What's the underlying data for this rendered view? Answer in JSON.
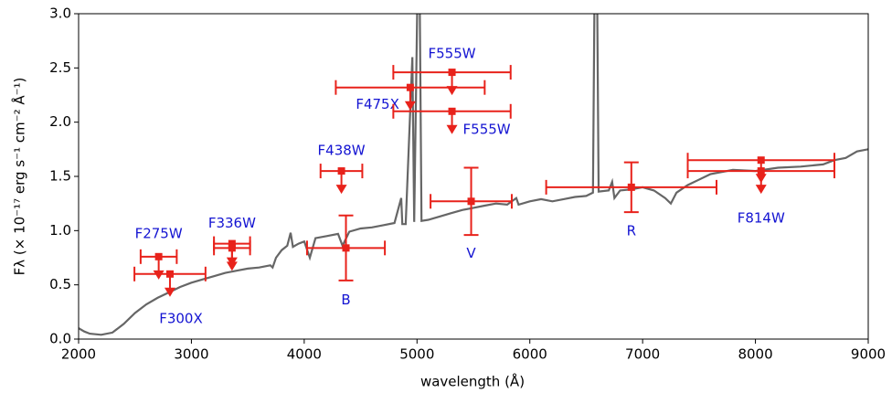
{
  "chart_data": {
    "type": "line",
    "xlabel": "wavelength (Å)",
    "ylabel": "Fλ (× 10⁻¹⁷ erg s⁻¹ cm⁻² Å⁻¹)",
    "xlim": [
      2000,
      9000
    ],
    "ylim": [
      0.0,
      3.0
    ],
    "xticks": [
      2000,
      3000,
      4000,
      5000,
      6000,
      7000,
      8000,
      9000
    ],
    "yticks": [
      {
        "value": 0.0,
        "label": "0.0"
      },
      0.5,
      {
        "value": 1.0,
        "label": "1.0"
      },
      1.5,
      {
        "value": 2.0,
        "label": "2.0"
      },
      2.5,
      {
        "value": 3.0,
        "label": "3.0"
      }
    ],
    "color": "#666666",
    "x": [
      2000,
      2050,
      2100,
      2200,
      2300,
      2400,
      2500,
      2600,
      2700,
      2800,
      2900,
      3000,
      3100,
      3200,
      3300,
      3400,
      3500,
      3600,
      3700,
      3720,
      3750,
      3800,
      3850,
      3880,
      3900,
      3950,
      4000,
      4050,
      4100,
      4200,
      4300,
      4340,
      4400,
      4500,
      4600,
      4700,
      4800,
      4860,
      4870,
      4900,
      4959,
      4975,
      5007,
      5022,
      5040,
      5100,
      5200,
      5300,
      5400,
      5500,
      5600,
      5700,
      5800,
      5880,
      5900,
      6000,
      6100,
      6200,
      6300,
      6400,
      6500,
      6560,
      6575,
      6595,
      6610,
      6700,
      6730,
      6750,
      6800,
      6900,
      7000,
      7100,
      7200,
      7250,
      7300,
      7400,
      7600,
      7800,
      8000,
      8200,
      8400,
      8600,
      8700,
      8800,
      8900,
      9000
    ],
    "values": [
      0.1,
      0.07,
      0.05,
      0.04,
      0.06,
      0.14,
      0.24,
      0.32,
      0.38,
      0.43,
      0.48,
      0.52,
      0.55,
      0.58,
      0.61,
      0.63,
      0.65,
      0.66,
      0.68,
      0.66,
      0.75,
      0.82,
      0.86,
      0.98,
      0.85,
      0.88,
      0.9,
      0.75,
      0.93,
      0.95,
      0.97,
      0.86,
      0.99,
      1.02,
      1.03,
      1.05,
      1.07,
      1.3,
      1.06,
      1.06,
      2.6,
      1.08,
      3.4,
      3.4,
      1.09,
      1.1,
      1.13,
      1.16,
      1.19,
      1.21,
      1.23,
      1.25,
      1.24,
      1.3,
      1.24,
      1.27,
      1.29,
      1.27,
      1.29,
      1.31,
      1.32,
      1.35,
      3.4,
      3.4,
      1.36,
      1.37,
      1.45,
      1.3,
      1.37,
      1.38,
      1.4,
      1.37,
      1.3,
      1.25,
      1.35,
      1.42,
      1.52,
      1.56,
      1.55,
      1.58,
      1.59,
      1.61,
      1.65,
      1.67,
      1.73,
      1.75
    ],
    "point_color": "#e8221b",
    "label_color": "#1414d2",
    "points": [
      {
        "name": "F275W",
        "x": 2710,
        "xerr": 160,
        "y": 0.76,
        "upper_limit": true
      },
      {
        "name": "F300X",
        "x": 2810,
        "xerr": 315,
        "y": 0.6,
        "upper_limit": true
      },
      {
        "name": "F336W",
        "x": 3360,
        "xerr": 160,
        "y": 0.88,
        "upper_limit": true
      },
      {
        "x": 3360,
        "xerr": 160,
        "y": 0.84,
        "upper_limit": true
      },
      {
        "name": "F438W",
        "x": 4330,
        "xerr": 185,
        "y": 1.55,
        "upper_limit": true
      },
      {
        "name": "B",
        "x": 4370,
        "xerr": 345,
        "y": 0.84,
        "yerr": 0.3
      },
      {
        "name": "F475X",
        "x": 4940,
        "xerr": 660,
        "y": 2.32,
        "upper_limit": true
      },
      {
        "name": "F555W",
        "x": 5310,
        "xerr": 520,
        "y": 2.46,
        "upper_limit": true
      },
      {
        "name": "F555W",
        "x": 5310,
        "xerr": 520,
        "y": 2.1,
        "upper_limit": true
      },
      {
        "name": "V",
        "x": 5480,
        "xerr": 360,
        "y": 1.27,
        "yerr": 0.31
      },
      {
        "name": "R",
        "x": 6900,
        "xerr": 755,
        "y": 1.4,
        "yerr": 0.23
      },
      {
        "name": "F814W",
        "x": 8050,
        "xerr": 650,
        "y": 1.65,
        "upper_limit": true
      },
      {
        "x": 8050,
        "xerr": 650,
        "y": 1.55,
        "upper_limit": true
      }
    ]
  }
}
